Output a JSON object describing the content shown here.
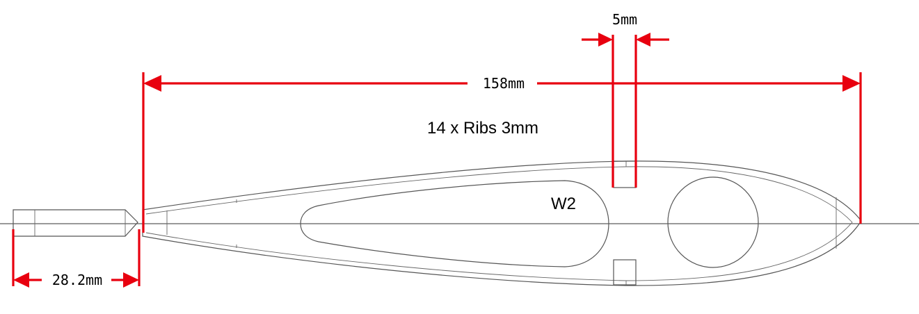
{
  "dimensions": {
    "slot_width": "5mm",
    "rib_length": "158mm",
    "tail_length": "28.2mm"
  },
  "notes": {
    "rib_spec": "14 x Ribs 3mm",
    "part_label": "W2"
  },
  "colors": {
    "dimension": "#e8000f",
    "outline": "#555555",
    "background": "#ffffff"
  }
}
